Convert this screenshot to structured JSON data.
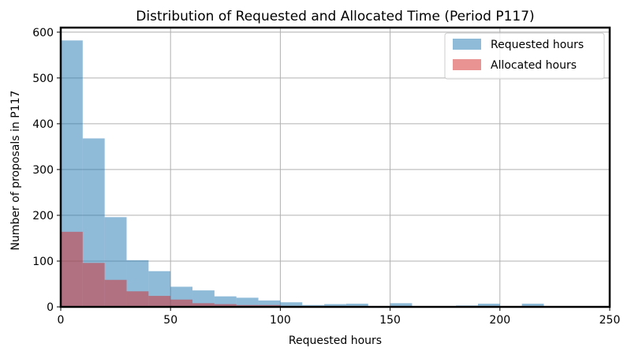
{
  "chart_data": {
    "type": "bar",
    "title": "Distribution of Requested and Allocated Time (Period P117)",
    "xlabel": "Requested hours",
    "ylabel": "Number of proposals in P117",
    "xlim": [
      0,
      250
    ],
    "ylim": [
      0,
      610
    ],
    "xticks": [
      0,
      50,
      100,
      150,
      200,
      250
    ],
    "yticks": [
      0,
      100,
      200,
      300,
      400,
      500,
      600
    ],
    "grid": true,
    "legend_position": "top-right",
    "bin_width": 10,
    "bin_edges": [
      0,
      10,
      20,
      30,
      40,
      50,
      60,
      70,
      80,
      90,
      100,
      110,
      120,
      130,
      140,
      150,
      160,
      170,
      180,
      190,
      200,
      210,
      220
    ],
    "series": [
      {
        "name": "Requested hours",
        "color": "#1f77b4",
        "alpha": 0.5,
        "values": [
          582,
          368,
          196,
          102,
          78,
          44,
          36,
          23,
          20,
          14,
          10,
          4,
          6,
          7,
          0,
          8,
          0,
          0,
          3,
          7,
          0,
          7
        ]
      },
      {
        "name": "Allocated hours",
        "color": "#d62728",
        "alpha": 0.5,
        "values": [
          164,
          96,
          59,
          34,
          24,
          16,
          8,
          6,
          4,
          4,
          2,
          0,
          0,
          0,
          0,
          0,
          0,
          0,
          0,
          0,
          0,
          0
        ]
      }
    ]
  }
}
